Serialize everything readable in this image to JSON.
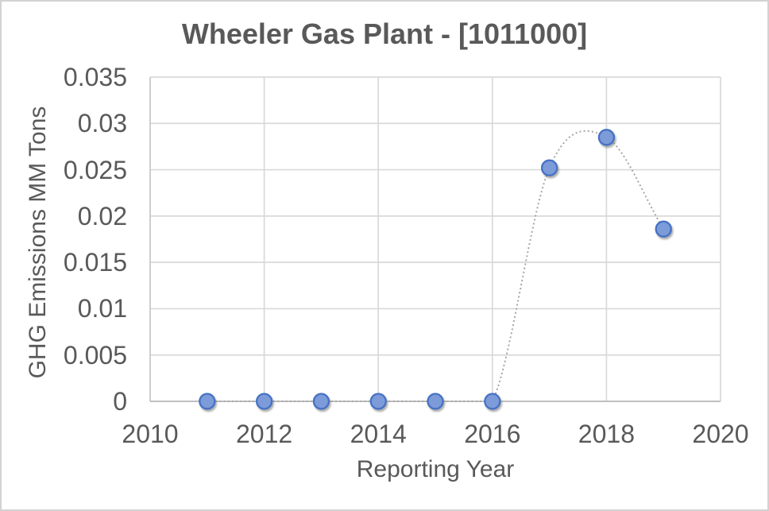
{
  "chart_data": {
    "type": "scatter",
    "title": "Wheeler Gas Plant - [1011000]",
    "xlabel": "Reporting Year",
    "ylabel": "GHG Emissions MM Tons",
    "x": [
      2011,
      2012,
      2013,
      2014,
      2015,
      2016,
      2017,
      2018,
      2019
    ],
    "y": [
      0,
      0,
      0,
      0,
      0,
      0,
      0.0252,
      0.0285,
      0.0186
    ],
    "xlim": [
      2010,
      2020
    ],
    "ylim": [
      0,
      0.035
    ],
    "x_tick_labels": [
      "2010",
      "2012",
      "2014",
      "2016",
      "2018",
      "2020"
    ],
    "y_tick_labels": [
      "0",
      "0.005",
      "0.01",
      "0.015",
      "0.02",
      "0.025",
      "0.03",
      "0.035"
    ],
    "grid": true,
    "legend": "none",
    "line": {
      "style": "dotted",
      "smooth": true,
      "color": "#a6a6a6"
    },
    "marker": {
      "shape": "circle",
      "fill": "#7d9bd9",
      "stroke": "#4472c4"
    },
    "colors": {
      "text": "#595959",
      "gridline": "#d9d9d9",
      "axis_line": "#bfbfbf",
      "background": "#ffffff",
      "frame_border": "#d2d2d2"
    }
  }
}
